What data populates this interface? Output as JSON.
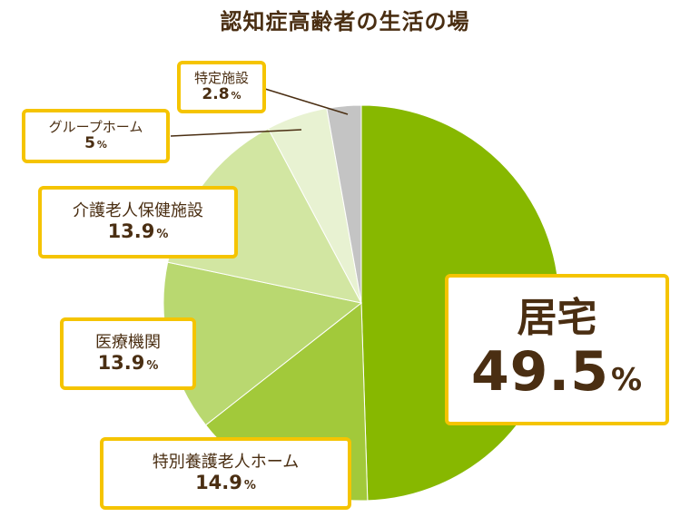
{
  "chart_data": {
    "type": "pie",
    "title": "認知症高齢者の生活の場",
    "slices": [
      {
        "label": "居宅",
        "value": 49.5,
        "color": "#87b800"
      },
      {
        "label": "特別養護老人ホーム",
        "value": 14.9,
        "color": "#a2c93a"
      },
      {
        "label": "医療機関",
        "value": 13.9,
        "color": "#b9d870"
      },
      {
        "label": "介護老人保健施設",
        "value": 13.9,
        "color": "#d2e6a2"
      },
      {
        "label": "グループホーム",
        "value": 5,
        "color": "#e8f2d2"
      },
      {
        "label": "特定施設",
        "value": 2.8,
        "color": "#c4c4c4"
      }
    ],
    "unit": "%",
    "label_border_color": "#f5c400",
    "text_color": "#4a2e12"
  }
}
